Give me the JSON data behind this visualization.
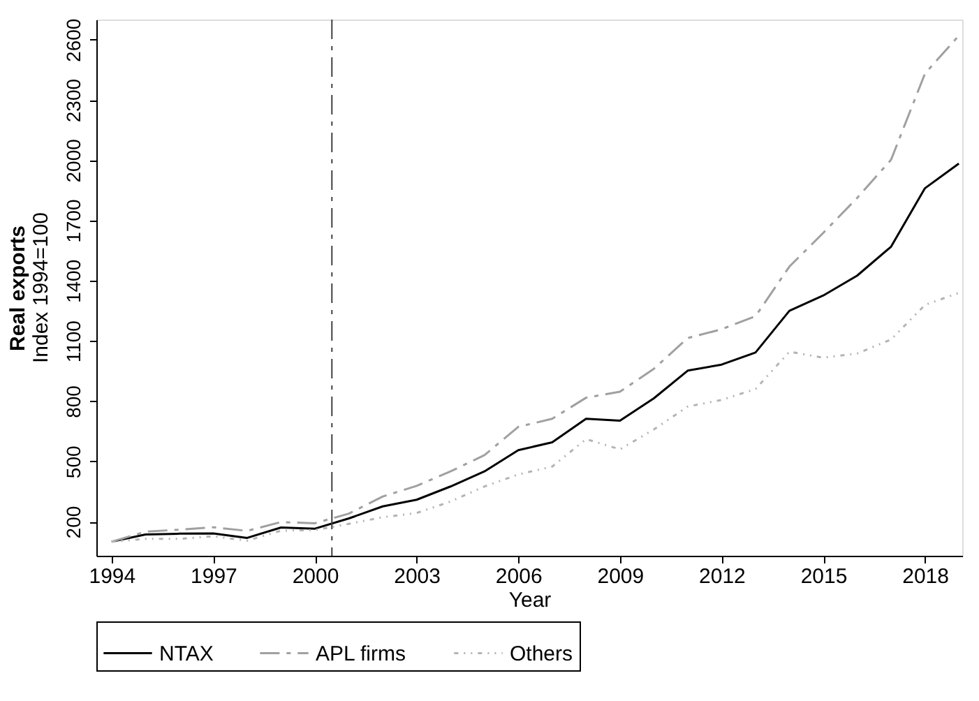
{
  "chart_data": {
    "type": "line",
    "xlabel": "Year",
    "ylabel": "Real exports",
    "annotations": [
      "Index 1994=100"
    ],
    "x": [
      1994,
      1995,
      1996,
      1997,
      1998,
      1999,
      2000,
      2001,
      2002,
      2003,
      2004,
      2005,
      2006,
      2007,
      2008,
      2009,
      2010,
      2011,
      2012,
      2013,
      2014,
      2015,
      2016,
      2017,
      2018,
      2019
    ],
    "xlim": [
      1993.55,
      2019.1
    ],
    "xticks": [
      1994,
      1997,
      2000,
      2003,
      2006,
      2009,
      2012,
      2015,
      2018
    ],
    "ylim": [
      30,
      2700
    ],
    "yticks": [
      200,
      500,
      800,
      1100,
      1400,
      1700,
      2000,
      2300,
      2600
    ],
    "series": [
      {
        "name": "NTAX",
        "color": "#000000",
        "line_style": "solid",
        "values": [
          100,
          136,
          140,
          141,
          119,
          171,
          165,
          216,
          276,
          309,
          375,
          450,
          556,
          595,
          712,
          703,
          814,
          952,
          982,
          1042,
          1250,
          1326,
          1425,
          1569,
          1860,
          1983
        ]
      },
      {
        "name": "APL firms",
        "color": "#a0a0a0",
        "line_style": "dashed",
        "values": [
          100,
          150,
          160,
          172,
          154,
          198,
          192,
          240,
          325,
          378,
          450,
          531,
          672,
          712,
          817,
          847,
          961,
          1114,
          1158,
          1223,
          1470,
          1638,
          1812,
          2002,
          2431,
          2620
        ]
      },
      {
        "name": "Others",
        "color": "#b4b4b4",
        "line_style": "dotted",
        "values": [
          100,
          114,
          114,
          127,
          105,
          155,
          158,
          189,
          222,
          243,
          300,
          375,
          435,
          474,
          611,
          560,
          659,
          773,
          806,
          860,
          1046,
          1016,
          1037,
          1107,
          1279,
          1339
        ]
      }
    ],
    "ref_lines": [
      {
        "axis": "x",
        "value": 2000.5,
        "color": "#404040",
        "line_style": "dashed"
      }
    ],
    "grid": false,
    "legend": "bottom"
  }
}
